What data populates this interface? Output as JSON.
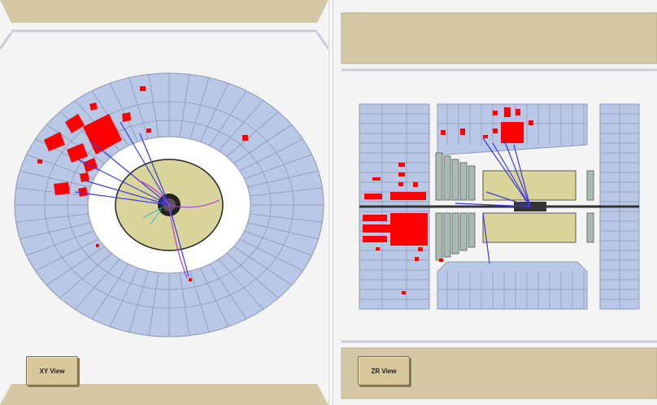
{
  "views": {
    "xy": {
      "button_label": "XY View"
    },
    "zr": {
      "button_label": "ZR View"
    }
  },
  "colors": {
    "tile": "#b9c8e6",
    "tile_line": "#7f8aa6",
    "core": "#d9d59a",
    "hit": "#ff0000",
    "track": "#3a3adc",
    "frame": "#d4c8a6",
    "track_alt": "#b040d0"
  }
}
